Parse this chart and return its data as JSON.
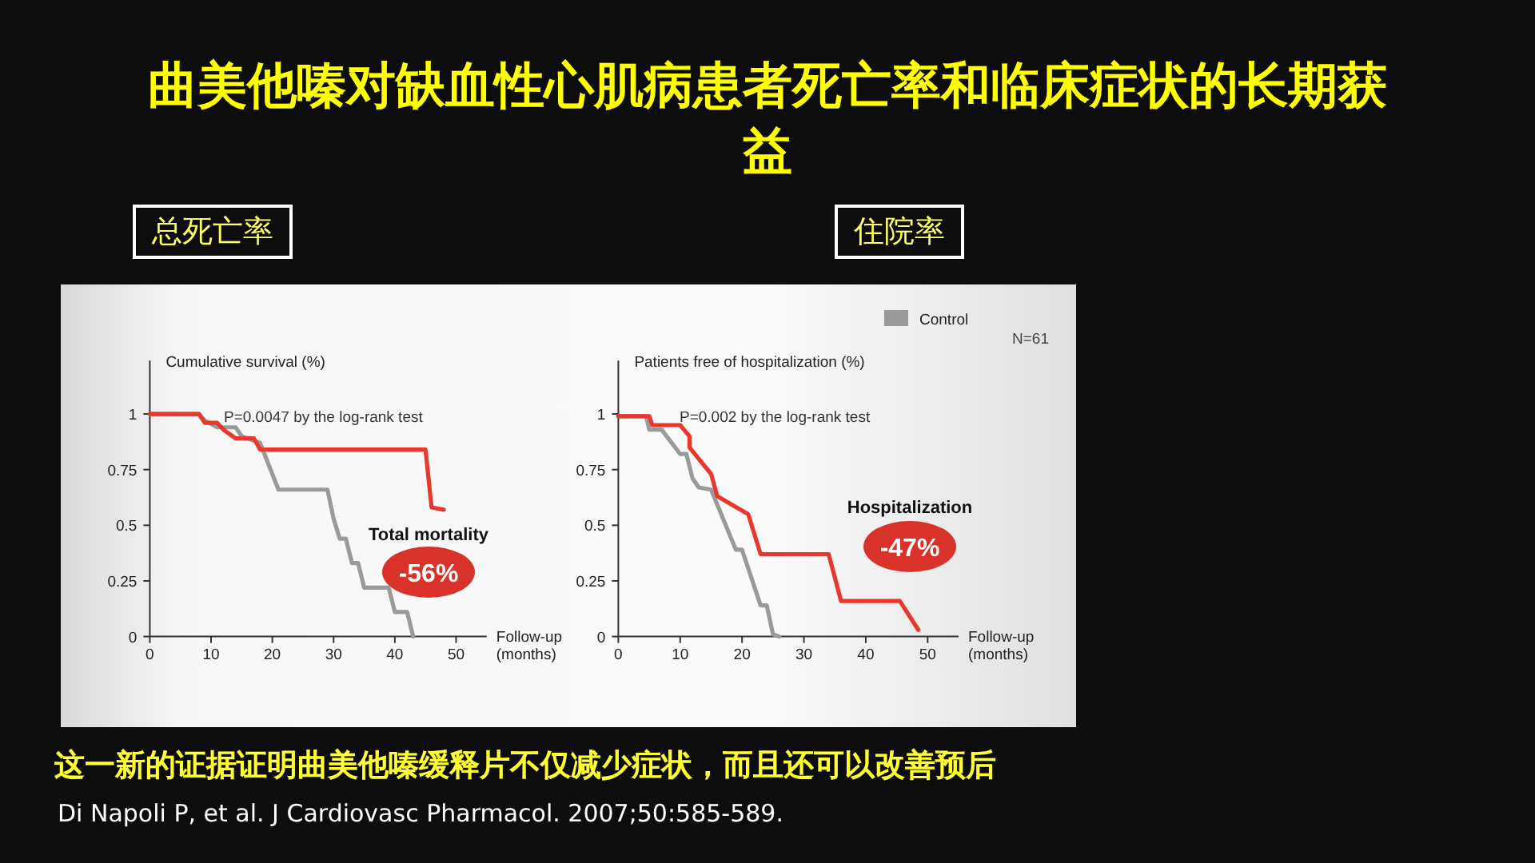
{
  "chart_data": [
    {
      "type": "line",
      "title": "曲美他嗪对缺血性心肌病患者死亡率和临床症状的长期获益",
      "subtitle": "总死亡率",
      "ylabel": "Cumulative survival (%)",
      "xlabel": "Follow-up (months)",
      "xlim": [
        0,
        55
      ],
      "ylim": [
        0,
        1.24
      ],
      "xticks": [
        0,
        10,
        20,
        30,
        40,
        50
      ],
      "yticks": [
        0,
        0.25,
        0.5,
        0.75,
        1
      ],
      "grid": false,
      "legend": false,
      "annotations": [
        "P=0.0047 by the log-rank test",
        "Total mortality",
        "-56%"
      ],
      "series": [
        {
          "color": "#9a9a9a",
          "x": [
            0,
            8,
            9,
            11,
            14,
            15,
            18,
            21,
            29,
            30,
            31,
            32,
            33,
            34,
            35,
            39,
            40,
            42,
            43
          ],
          "values": [
            1,
            1,
            0.97,
            0.94,
            0.94,
            0.9,
            0.87,
            0.66,
            0.66,
            0.53,
            0.44,
            0.44,
            0.33,
            0.33,
            0.22,
            0.22,
            0.11,
            0.11,
            0
          ]
        },
        {
          "color": "#e8372b",
          "x": [
            0,
            8,
            9,
            11,
            12,
            14,
            17,
            18,
            45,
            46,
            48
          ],
          "values": [
            1,
            1,
            0.96,
            0.96,
            0.93,
            0.89,
            0.89,
            0.84,
            0.84,
            0.58,
            0.57
          ]
        }
      ]
    },
    {
      "type": "line",
      "subtitle": "住院率",
      "ylabel": "Patients free of hospitalization (%)",
      "xlabel": "Follow-up (months)",
      "xlim": [
        0,
        55
      ],
      "ylim": [
        0,
        1.24
      ],
      "xticks": [
        0,
        10,
        20,
        30,
        40,
        50
      ],
      "yticks": [
        0,
        0.25,
        0.5,
        0.75,
        1
      ],
      "grid": false,
      "legend": "top right",
      "annotations": [
        "N=61",
        "P=0.002 by the log-rank test",
        "Hospitalization",
        "-47%",
        "这一新的证据证明曲美他嗪缓释片不仅减少症状，而且还可以改善预后",
        "Di Napoli P, et al. J Cardiovasc Pharmacol. 2007;50:585-589."
      ],
      "series": [
        {
          "name": "Control",
          "color": "#9a9a9a",
          "x": [
            0,
            4.5,
            5,
            7,
            10,
            11,
            12,
            13,
            15,
            19,
            20,
            23,
            24,
            25,
            26
          ],
          "values": [
            0.99,
            0.99,
            0.93,
            0.93,
            0.82,
            0.82,
            0.71,
            0.67,
            0.66,
            0.39,
            0.39,
            0.14,
            0.14,
            0.01,
            0
          ]
        },
        {
          "color": "#e8372b",
          "x": [
            0,
            5,
            5.5,
            10,
            11.5,
            11.5,
            15,
            16,
            21,
            23,
            34,
            36,
            45.5,
            48.5
          ],
          "values": [
            0.99,
            0.99,
            0.95,
            0.95,
            0.9,
            0.85,
            0.73,
            0.63,
            0.55,
            0.37,
            0.37,
            0.16,
            0.16,
            0.03
          ]
        }
      ]
    }
  ]
}
